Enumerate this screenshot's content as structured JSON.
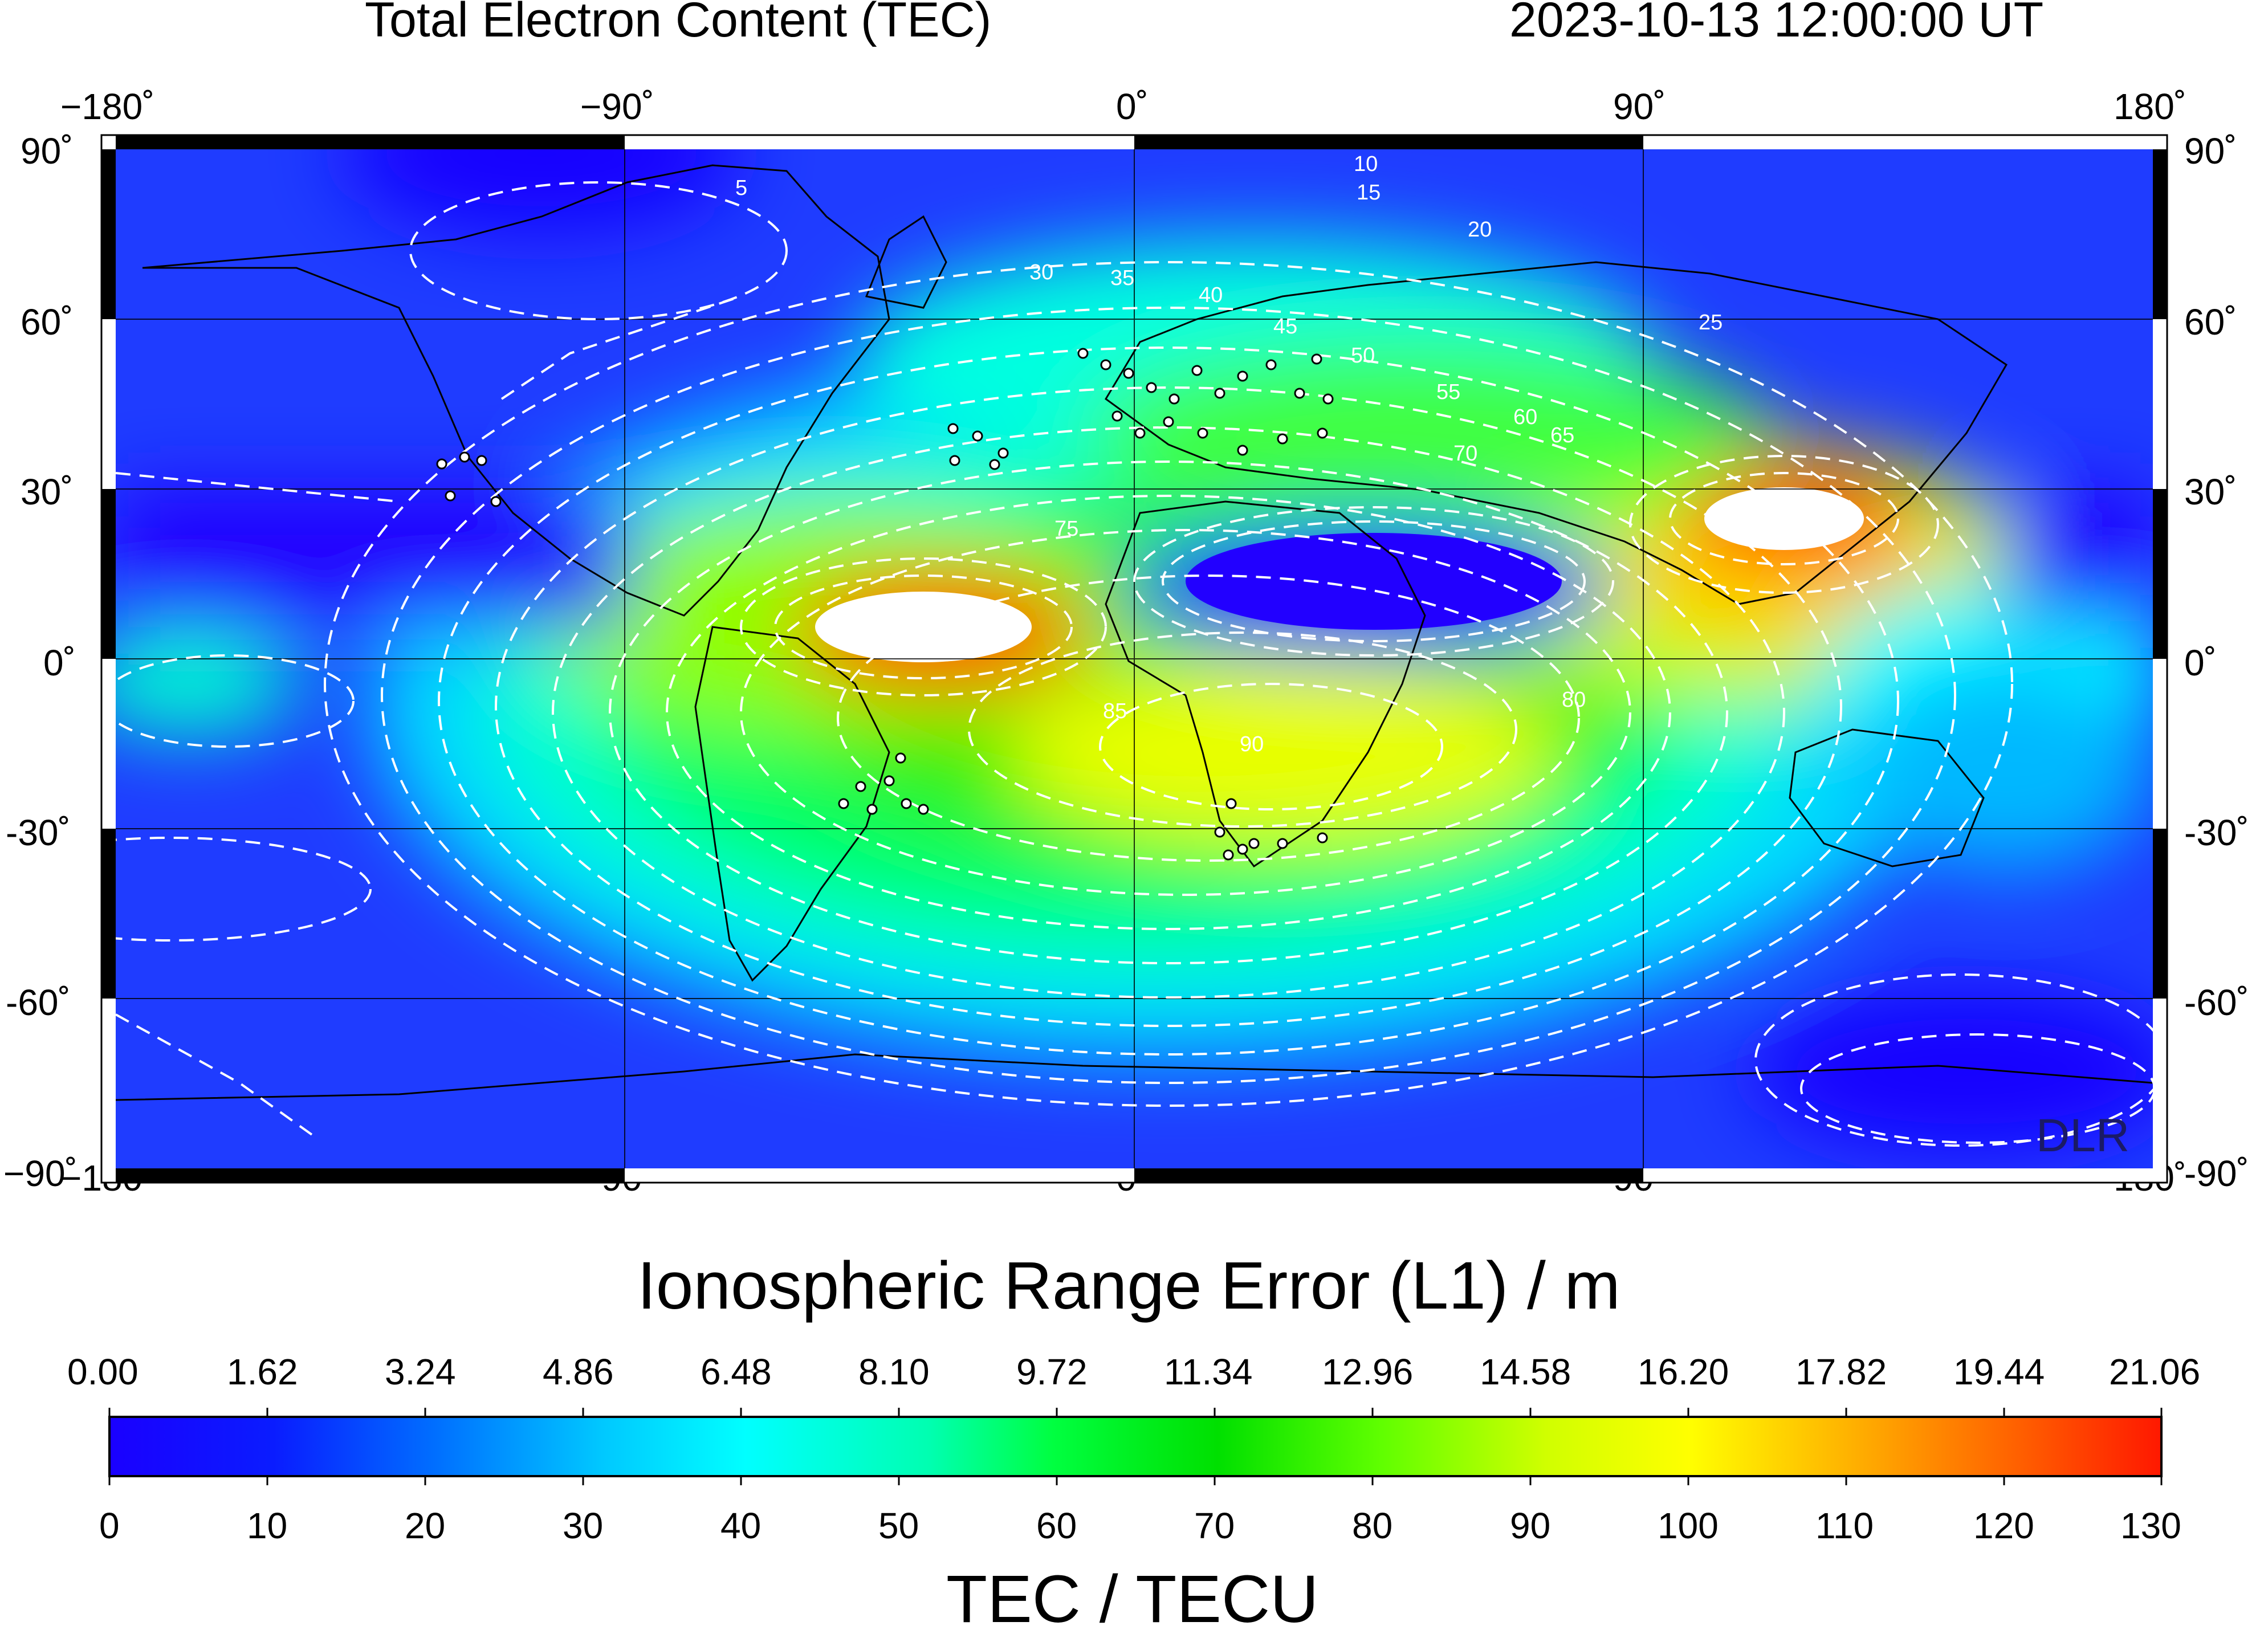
{
  "header": {
    "title": "Total Electron Content (TEC)",
    "timestamp": "2023-10-13  12:00:00 UT"
  },
  "map": {
    "lon_ticks": [
      "−180˚",
      "−90˚",
      "0˚",
      "90˚",
      "180˚"
    ],
    "lat_ticks_left": [
      "90˚",
      "60˚",
      "30˚",
      "0˚",
      "-30˚",
      "-60˚",
      "−90˚"
    ],
    "lat_ticks_right": [
      "90˚",
      "60˚",
      "30˚",
      "0˚",
      "-30˚",
      "-60˚",
      "-90˚"
    ],
    "lon_range": [
      -180,
      180
    ],
    "lat_range": [
      -90,
      90
    ],
    "watermark": "DLR",
    "contour_interval_tecu": 5,
    "contour_labels": [
      "5",
      "10",
      "15",
      "20",
      "25",
      "30",
      "35",
      "40",
      "45",
      "50",
      "55",
      "60",
      "65",
      "70",
      "75",
      "80",
      "85",
      "90"
    ],
    "colors": {
      "contours": "#ffffff",
      "coastlines": "#000000",
      "stations": "#ffffff"
    }
  },
  "colorbar": {
    "top_title": "Ionospheric Range Error (L1) / m",
    "top_ticks": [
      "0.00",
      "1.62",
      "3.24",
      "4.86",
      "6.48",
      "8.10",
      "9.72",
      "11.34",
      "12.96",
      "14.58",
      "16.20",
      "17.82",
      "19.44",
      "21.06"
    ],
    "bottom_ticks": [
      "0",
      "10",
      "20",
      "30",
      "40",
      "50",
      "60",
      "70",
      "80",
      "90",
      "100",
      "110",
      "120",
      "130"
    ],
    "bottom_title": "TEC / TECU",
    "range": [
      0,
      130
    ],
    "stops": [
      "#1a00ff",
      "#0030ff",
      "#00b0ff",
      "#00ffff",
      "#00ff90",
      "#00e000",
      "#80ff00",
      "#ffff00",
      "#ff9000",
      "#ff2000"
    ]
  }
}
